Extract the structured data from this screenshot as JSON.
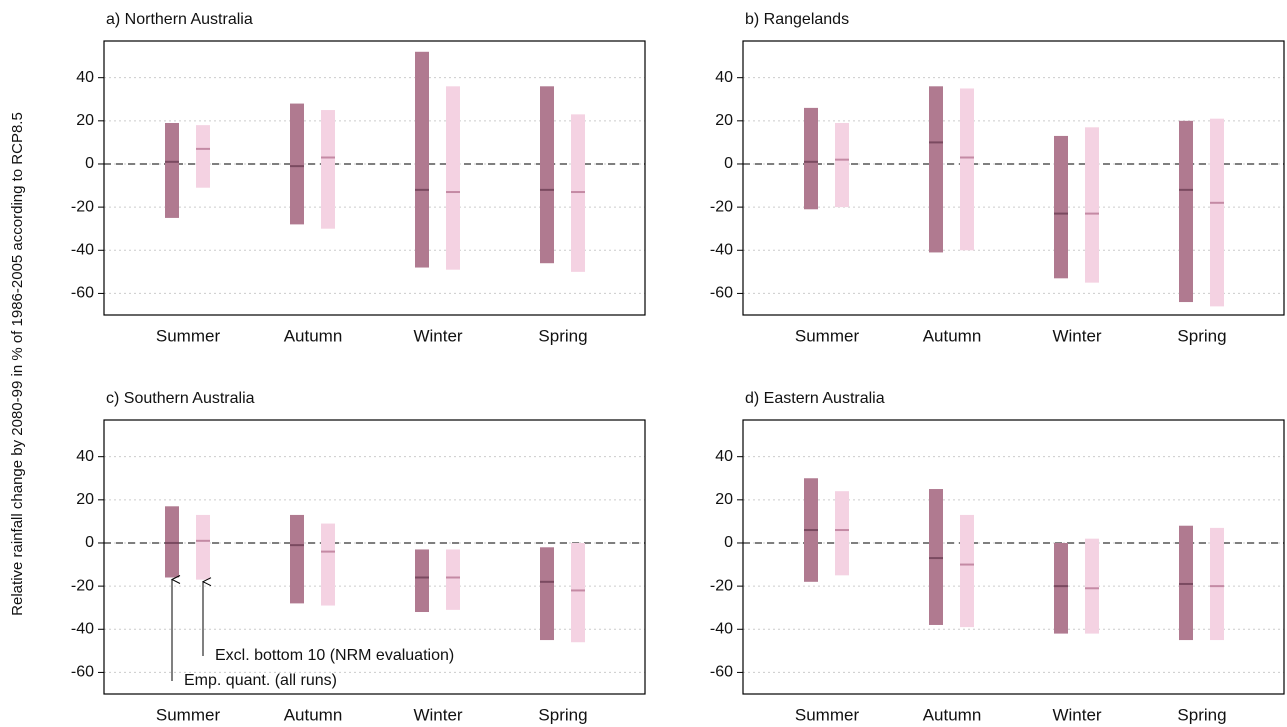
{
  "ylabel": "Relative rainfall change by 2080-99 in % of 1986-2005 according to RCP8.5",
  "chart_data": [
    {
      "type": "range_bar",
      "title": "a) Northern Australia",
      "categories": [
        "Summer",
        "Autumn",
        "Winter",
        "Spring"
      ],
      "ylim": [
        -70,
        57
      ],
      "yticks": [
        -60,
        -40,
        -20,
        0,
        20,
        40
      ],
      "grid": true,
      "reference_line": 0,
      "series": [
        {
          "color": "#b07a90",
          "median_color": "#7a4a60",
          "low": [
            -25,
            -28,
            -48,
            -46
          ],
          "high": [
            19,
            28,
            52,
            36
          ],
          "median": [
            1,
            -1,
            -12,
            -12
          ]
        },
        {
          "color": "#f4d2e2",
          "median_color": "#c48aa4",
          "low": [
            -11,
            -30,
            -49,
            -50
          ],
          "high": [
            18,
            25,
            36,
            23
          ],
          "median": [
            7,
            3,
            -13,
            -13
          ]
        }
      ]
    },
    {
      "type": "range_bar",
      "title": "b) Rangelands",
      "categories": [
        "Summer",
        "Autumn",
        "Winter",
        "Spring"
      ],
      "ylim": [
        -70,
        57
      ],
      "yticks": [
        -60,
        -40,
        -20,
        0,
        20,
        40
      ],
      "grid": true,
      "reference_line": 0,
      "series": [
        {
          "color": "#b07a90",
          "median_color": "#7a4a60",
          "low": [
            -21,
            -41,
            -53,
            -64
          ],
          "high": [
            26,
            36,
            13,
            20
          ],
          "median": [
            1,
            10,
            -23,
            -12
          ]
        },
        {
          "color": "#f4d2e2",
          "median_color": "#c48aa4",
          "low": [
            -20,
            -40,
            -55,
            -66
          ],
          "high": [
            19,
            35,
            17,
            21
          ],
          "median": [
            2,
            3,
            -23,
            -18
          ]
        }
      ]
    },
    {
      "type": "range_bar",
      "title": "c) Southern Australia",
      "categories": [
        "Summer",
        "Autumn",
        "Winter",
        "Spring"
      ],
      "ylim": [
        -70,
        57
      ],
      "yticks": [
        -60,
        -40,
        -20,
        0,
        20,
        40
      ],
      "grid": true,
      "reference_line": 0,
      "annotations": [
        "Emp. quant. (all runs)",
        "Excl. bottom 10 (NRM evaluation)"
      ],
      "series": [
        {
          "color": "#b07a90",
          "median_color": "#7a4a60",
          "low": [
            -16,
            -28,
            -32,
            -45
          ],
          "high": [
            17,
            13,
            -3,
            -2
          ],
          "median": [
            0,
            -1,
            -16,
            -18
          ]
        },
        {
          "color": "#f4d2e2",
          "median_color": "#c48aa4",
          "low": [
            -17,
            -29,
            -31,
            -46
          ],
          "high": [
            13,
            9,
            -3,
            0
          ],
          "median": [
            1,
            -4,
            -16,
            -22
          ]
        }
      ]
    },
    {
      "type": "range_bar",
      "title": "d) Eastern Australia",
      "categories": [
        "Summer",
        "Autumn",
        "Winter",
        "Spring"
      ],
      "ylim": [
        -70,
        57
      ],
      "yticks": [
        -60,
        -40,
        -20,
        0,
        20,
        40
      ],
      "grid": true,
      "reference_line": 0,
      "series": [
        {
          "color": "#b07a90",
          "median_color": "#7a4a60",
          "low": [
            -18,
            -38,
            -42,
            -45
          ],
          "high": [
            30,
            25,
            0,
            8
          ],
          "median": [
            6,
            -7,
            -20,
            -19
          ]
        },
        {
          "color": "#f4d2e2",
          "median_color": "#c48aa4",
          "low": [
            -15,
            -39,
            -42,
            -45
          ],
          "high": [
            24,
            13,
            2,
            7
          ],
          "median": [
            6,
            -10,
            -21,
            -20
          ]
        }
      ]
    }
  ]
}
